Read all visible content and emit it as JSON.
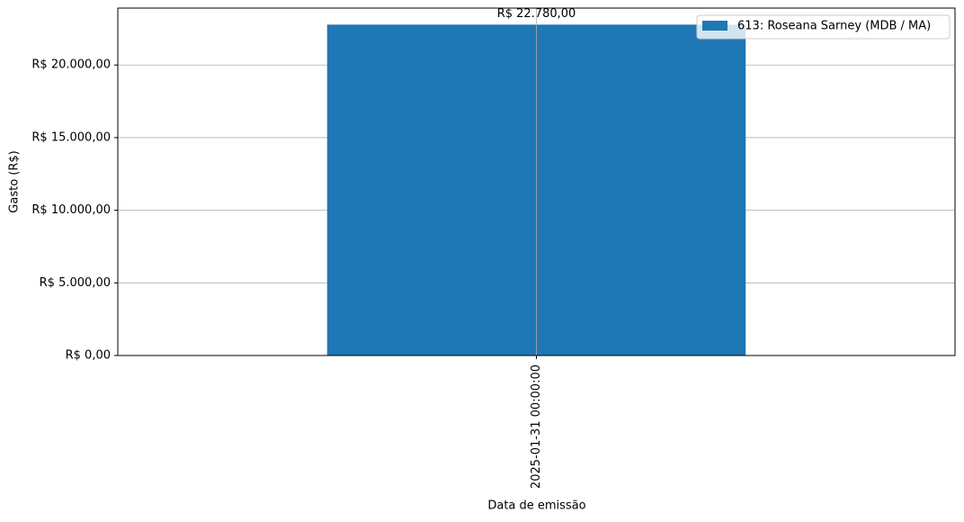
{
  "chart_data": {
    "type": "bar",
    "categories": [
      "2025-01-31 00:00:00"
    ],
    "series": [
      {
        "name": "613: Roseana Sarney (MDB / MA)",
        "color": "#1f77b4",
        "values": [
          22780
        ],
        "value_labels": [
          "R$ 22.780,00"
        ]
      }
    ],
    "xlabel": "Data de emissão",
    "ylabel": "Gasto (R$)",
    "ylim": [
      0,
      23919
    ],
    "yticks": [
      {
        "value": 0,
        "label": "R$ 0,00"
      },
      {
        "value": 5000,
        "label": "R$ 5.000,00"
      },
      {
        "value": 10000,
        "label": "R$ 10.000,00"
      },
      {
        "value": 15000,
        "label": "R$ 15.000,00"
      },
      {
        "value": 20000,
        "label": "R$ 20.000,00"
      }
    ],
    "grid": true,
    "legend": "upper right"
  }
}
